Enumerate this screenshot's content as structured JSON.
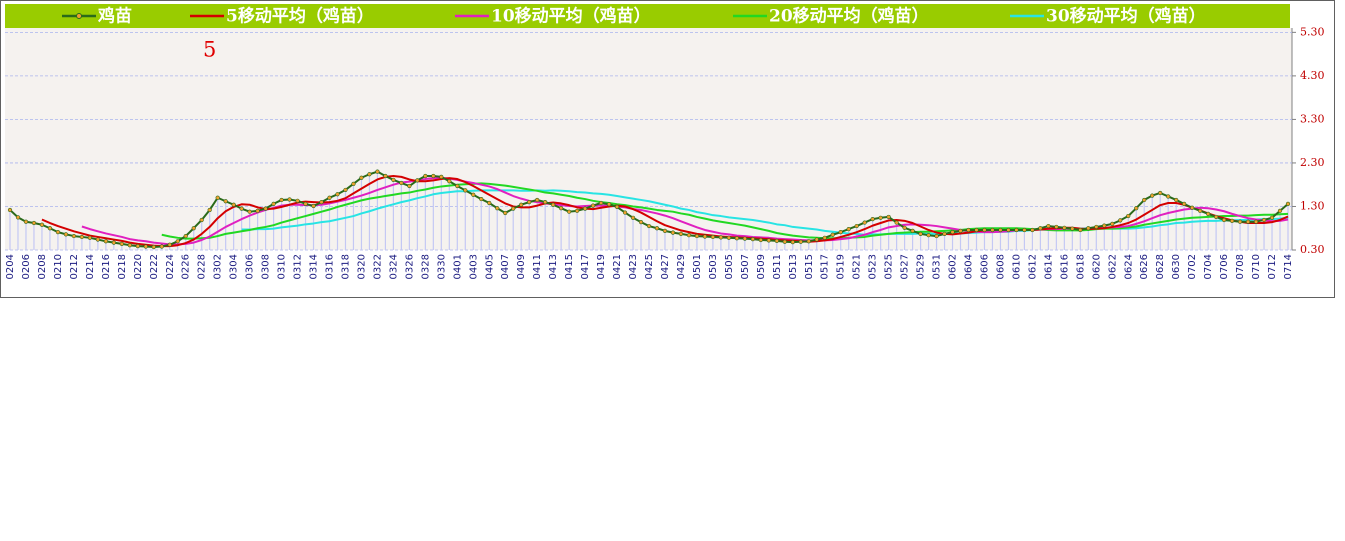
{
  "chart_data": {
    "type": "line",
    "annotation": "5",
    "legend": "top",
    "grid": true,
    "ylim": [
      0.3,
      5.4
    ],
    "yticks": [
      {
        "value": 0.3,
        "label": "0.30"
      },
      {
        "value": 1.3,
        "label": "1.30"
      },
      {
        "value": 2.3,
        "label": "2.30"
      },
      {
        "value": 3.3,
        "label": "3.30"
      },
      {
        "value": 4.3,
        "label": "4.30"
      },
      {
        "value": 5.3,
        "label": "5.30"
      }
    ],
    "categories": [
      "0204",
      null,
      "0206",
      null,
      "0208",
      null,
      "0210",
      null,
      "0212",
      null,
      "0214",
      null,
      "0216",
      null,
      "0218",
      null,
      "0220",
      null,
      "0222",
      null,
      "0224",
      null,
      "0226",
      null,
      "0228",
      null,
      "0302",
      null,
      "0304",
      null,
      "0306",
      null,
      "0308",
      null,
      "0310",
      null,
      "0312",
      null,
      "0314",
      null,
      "0316",
      null,
      "0318",
      null,
      "0320",
      null,
      "0322",
      null,
      "0324",
      null,
      "0326",
      null,
      "0328",
      null,
      "0330",
      null,
      "0401",
      null,
      "0403",
      null,
      "0405",
      null,
      "0407",
      null,
      "0409",
      null,
      "0411",
      null,
      "0413",
      null,
      "0415",
      null,
      "0417",
      null,
      "0419",
      null,
      "0421",
      null,
      "0423",
      null,
      "0425",
      null,
      "0427",
      null,
      "0429",
      null,
      "0501",
      null,
      "0503",
      null,
      "0505",
      null,
      "0507",
      null,
      "0509",
      null,
      "0511",
      null,
      "0513",
      null,
      "0515",
      null,
      "0517",
      null,
      "0519",
      null,
      "0521",
      null,
      "0523",
      null,
      "0525",
      null,
      "0527",
      null,
      "0529",
      null,
      "0531",
      null,
      "0602",
      null,
      "0604",
      null,
      "0606",
      null,
      "0608",
      null,
      "0610",
      null,
      "0612",
      null,
      "0614",
      null,
      "0616",
      null,
      "0618",
      null,
      "0620",
      null,
      "0622",
      null,
      "0624",
      null,
      "0626",
      null,
      "0628",
      null,
      "0630",
      null,
      "0702",
      null,
      "0704",
      null,
      "0706",
      null,
      "0708",
      null,
      "0710",
      null,
      "0712",
      null,
      "0714"
    ],
    "series": [
      {
        "name": "鸡苗",
        "color": "#2a6a1a",
        "marker_color": "#f0a030",
        "drop_lines": true,
        "drop_color": "#c4c8f4",
        "values": [
          1.22,
          1.05,
          0.95,
          0.92,
          0.88,
          0.8,
          0.71,
          0.66,
          0.62,
          0.6,
          0.58,
          0.54,
          0.5,
          0.47,
          0.44,
          0.41,
          0.39,
          0.38,
          0.37,
          0.38,
          0.42,
          0.5,
          0.62,
          0.8,
          0.99,
          1.22,
          1.5,
          1.42,
          1.34,
          1.25,
          1.18,
          1.2,
          1.25,
          1.36,
          1.45,
          1.46,
          1.43,
          1.36,
          1.31,
          1.4,
          1.5,
          1.58,
          1.68,
          1.82,
          1.96,
          2.04,
          2.1,
          2.0,
          1.91,
          1.84,
          1.77,
          1.9,
          2.0,
          2.0,
          1.98,
          1.88,
          1.77,
          1.67,
          1.57,
          1.47,
          1.38,
          1.26,
          1.15,
          1.25,
          1.34,
          1.4,
          1.45,
          1.4,
          1.34,
          1.26,
          1.18,
          1.2,
          1.25,
          1.32,
          1.38,
          1.35,
          1.29,
          1.16,
          1.04,
          0.94,
          0.85,
          0.8,
          0.74,
          0.7,
          0.67,
          0.64,
          0.62,
          0.61,
          0.6,
          0.59,
          0.58,
          0.57,
          0.56,
          0.55,
          0.53,
          0.52,
          0.51,
          0.49,
          0.48,
          0.49,
          0.5,
          0.54,
          0.58,
          0.65,
          0.71,
          0.78,
          0.85,
          0.93,
          1.01,
          1.04,
          1.06,
          0.93,
          0.81,
          0.74,
          0.67,
          0.64,
          0.62,
          0.67,
          0.71,
          0.74,
          0.76,
          0.76,
          0.76,
          0.76,
          0.76,
          0.76,
          0.76,
          0.76,
          0.76,
          0.8,
          0.85,
          0.83,
          0.81,
          0.79,
          0.76,
          0.8,
          0.83,
          0.86,
          0.9,
          0.98,
          1.08,
          1.26,
          1.45,
          1.55,
          1.61,
          1.53,
          1.45,
          1.36,
          1.27,
          1.2,
          1.13,
          1.06,
          0.99,
          0.97,
          0.95,
          0.95,
          0.95,
          0.99,
          1.04,
          1.2,
          1.36
        ]
      },
      {
        "name": "5移动平均（鸡苗）",
        "color": "#d40000",
        "values": [
          null,
          null,
          null,
          null,
          1.0,
          0.92,
          0.85,
          0.79,
          0.73,
          0.68,
          0.63,
          0.6,
          0.57,
          0.54,
          0.51,
          0.47,
          0.44,
          0.42,
          0.4,
          0.39,
          0.39,
          0.41,
          0.46,
          0.54,
          0.67,
          0.83,
          1.03,
          1.19,
          1.29,
          1.35,
          1.34,
          1.28,
          1.24,
          1.25,
          1.29,
          1.34,
          1.39,
          1.41,
          1.4,
          1.39,
          1.4,
          1.43,
          1.49,
          1.6,
          1.71,
          1.82,
          1.92,
          1.98,
          2.0,
          1.98,
          1.92,
          1.88,
          1.88,
          1.9,
          1.93,
          1.95,
          1.93,
          1.86,
          1.77,
          1.67,
          1.57,
          1.47,
          1.37,
          1.3,
          1.28,
          1.28,
          1.32,
          1.37,
          1.39,
          1.37,
          1.33,
          1.28,
          1.25,
          1.24,
          1.27,
          1.3,
          1.32,
          1.3,
          1.24,
          1.16,
          1.06,
          0.96,
          0.87,
          0.81,
          0.75,
          0.71,
          0.67,
          0.65,
          0.63,
          0.61,
          0.6,
          0.59,
          0.58,
          0.57,
          0.56,
          0.55,
          0.53,
          0.52,
          0.51,
          0.5,
          0.49,
          0.5,
          0.52,
          0.55,
          0.6,
          0.65,
          0.71,
          0.78,
          0.86,
          0.92,
          0.98,
          0.99,
          0.97,
          0.92,
          0.84,
          0.76,
          0.7,
          0.67,
          0.66,
          0.68,
          0.7,
          0.73,
          0.75,
          0.76,
          0.76,
          0.76,
          0.76,
          0.76,
          0.76,
          0.77,
          0.79,
          0.8,
          0.81,
          0.81,
          0.79,
          0.78,
          0.79,
          0.8,
          0.83,
          0.87,
          0.92,
          1.0,
          1.11,
          1.22,
          1.33,
          1.38,
          1.38,
          1.34,
          1.27,
          1.21,
          1.14,
          1.08,
          1.03,
          0.98,
          0.95,
          0.92,
          0.92,
          0.92,
          0.94,
          0.99,
          1.07
        ]
      },
      {
        "name": "10移动平均（鸡苗）",
        "color": "#e020c0",
        "values": [
          null,
          null,
          null,
          null,
          null,
          null,
          null,
          null,
          null,
          0.84,
          0.78,
          0.73,
          0.68,
          0.64,
          0.6,
          0.55,
          0.52,
          0.5,
          0.47,
          0.45,
          0.43,
          0.43,
          0.44,
          0.47,
          0.53,
          0.61,
          0.72,
          0.83,
          0.92,
          1.01,
          1.09,
          1.16,
          1.22,
          1.27,
          1.32,
          1.34,
          1.34,
          1.33,
          1.33,
          1.34,
          1.37,
          1.41,
          1.45,
          1.5,
          1.55,
          1.61,
          1.68,
          1.74,
          1.8,
          1.85,
          1.87,
          1.9,
          1.93,
          1.95,
          1.96,
          1.94,
          1.91,
          1.87,
          1.84,
          1.8,
          1.76,
          1.7,
          1.62,
          1.54,
          1.48,
          1.43,
          1.4,
          1.37,
          1.35,
          1.33,
          1.31,
          1.3,
          1.31,
          1.32,
          1.32,
          1.32,
          1.3,
          1.28,
          1.24,
          1.22,
          1.18,
          1.14,
          1.09,
          1.03,
          0.96,
          0.89,
          0.82,
          0.76,
          0.72,
          0.68,
          0.66,
          0.63,
          0.62,
          0.6,
          0.59,
          0.58,
          0.56,
          0.55,
          0.54,
          0.53,
          0.52,
          0.52,
          0.52,
          0.53,
          0.55,
          0.57,
          0.61,
          0.65,
          0.71,
          0.76,
          0.82,
          0.85,
          0.88,
          0.89,
          0.88,
          0.87,
          0.85,
          0.82,
          0.79,
          0.76,
          0.73,
          0.72,
          0.71,
          0.71,
          0.72,
          0.73,
          0.75,
          0.76,
          0.76,
          0.77,
          0.78,
          0.78,
          0.79,
          0.79,
          0.78,
          0.79,
          0.8,
          0.81,
          0.82,
          0.83,
          0.85,
          0.9,
          0.96,
          1.03,
          1.1,
          1.15,
          1.19,
          1.23,
          1.25,
          1.27,
          1.26,
          1.23,
          1.19,
          1.13,
          1.08,
          1.03,
          1.0,
          0.98,
          0.96,
          0.97,
          1.0
        ]
      },
      {
        "name": "20移动平均（鸡苗）",
        "color": "#22d822",
        "values": [
          null,
          null,
          null,
          null,
          null,
          null,
          null,
          null,
          null,
          null,
          null,
          null,
          null,
          null,
          null,
          null,
          null,
          null,
          null,
          0.65,
          0.61,
          0.58,
          0.56,
          0.56,
          0.57,
          0.58,
          0.62,
          0.67,
          0.7,
          0.73,
          0.76,
          0.8,
          0.83,
          0.87,
          0.93,
          0.98,
          1.03,
          1.08,
          1.13,
          1.18,
          1.23,
          1.29,
          1.34,
          1.39,
          1.44,
          1.48,
          1.51,
          1.54,
          1.57,
          1.6,
          1.62,
          1.66,
          1.69,
          1.73,
          1.76,
          1.78,
          1.8,
          1.81,
          1.82,
          1.83,
          1.82,
          1.8,
          1.78,
          1.75,
          1.72,
          1.69,
          1.66,
          1.62,
          1.6,
          1.57,
          1.54,
          1.5,
          1.47,
          1.43,
          1.4,
          1.38,
          1.35,
          1.33,
          1.3,
          1.28,
          1.25,
          1.22,
          1.2,
          1.18,
          1.14,
          1.11,
          1.06,
          1.02,
          0.98,
          0.95,
          0.92,
          0.89,
          0.86,
          0.82,
          0.78,
          0.74,
          0.69,
          0.66,
          0.63,
          0.61,
          0.59,
          0.58,
          0.57,
          0.57,
          0.57,
          0.58,
          0.59,
          0.6,
          0.63,
          0.65,
          0.67,
          0.69,
          0.7,
          0.71,
          0.72,
          0.72,
          0.73,
          0.74,
          0.75,
          0.76,
          0.78,
          0.79,
          0.8,
          0.8,
          0.8,
          0.8,
          0.8,
          0.79,
          0.78,
          0.77,
          0.76,
          0.75,
          0.75,
          0.75,
          0.75,
          0.76,
          0.78,
          0.79,
          0.79,
          0.8,
          0.82,
          0.84,
          0.88,
          0.91,
          0.94,
          0.97,
          1.0,
          1.02,
          1.04,
          1.05,
          1.06,
          1.07,
          1.08,
          1.08,
          1.09,
          1.09,
          1.1,
          1.11,
          1.11,
          1.12,
          1.13
        ]
      },
      {
        "name": "30移动平均（鸡苗）",
        "color": "#28e4e4",
        "values": [
          null,
          null,
          null,
          null,
          null,
          null,
          null,
          null,
          null,
          null,
          null,
          null,
          null,
          null,
          null,
          null,
          null,
          null,
          null,
          null,
          null,
          null,
          null,
          null,
          null,
          null,
          null,
          null,
          null,
          0.77,
          0.77,
          0.78,
          0.78,
          0.79,
          0.82,
          0.84,
          0.86,
          0.89,
          0.91,
          0.94,
          0.96,
          1.0,
          1.04,
          1.08,
          1.14,
          1.19,
          1.25,
          1.3,
          1.35,
          1.4,
          1.44,
          1.49,
          1.53,
          1.58,
          1.61,
          1.63,
          1.65,
          1.65,
          1.66,
          1.67,
          1.67,
          1.67,
          1.67,
          1.67,
          1.66,
          1.66,
          1.67,
          1.66,
          1.67,
          1.66,
          1.65,
          1.63,
          1.62,
          1.6,
          1.59,
          1.57,
          1.54,
          1.51,
          1.48,
          1.45,
          1.42,
          1.38,
          1.34,
          1.3,
          1.25,
          1.22,
          1.17,
          1.14,
          1.1,
          1.08,
          1.05,
          1.03,
          1.01,
          0.99,
          0.96,
          0.93,
          0.89,
          0.87,
          0.83,
          0.81,
          0.79,
          0.77,
          0.74,
          0.72,
          0.7,
          0.68,
          0.67,
          0.65,
          0.66,
          0.66,
          0.67,
          0.67,
          0.67,
          0.67,
          0.68,
          0.67,
          0.67,
          0.68,
          0.68,
          0.68,
          0.69,
          0.7,
          0.71,
          0.71,
          0.72,
          0.72,
          0.74,
          0.74,
          0.76,
          0.77,
          0.78,
          0.78,
          0.79,
          0.8,
          0.79,
          0.8,
          0.8,
          0.8,
          0.79,
          0.79,
          0.79,
          0.8,
          0.82,
          0.84,
          0.87,
          0.89,
          0.92,
          0.93,
          0.95,
          0.96,
          0.97,
          0.97,
          0.98,
          0.98,
          0.99,
          0.99,
          1.0,
          1.01,
          1.01,
          1.02,
          1.04
        ]
      }
    ]
  }
}
